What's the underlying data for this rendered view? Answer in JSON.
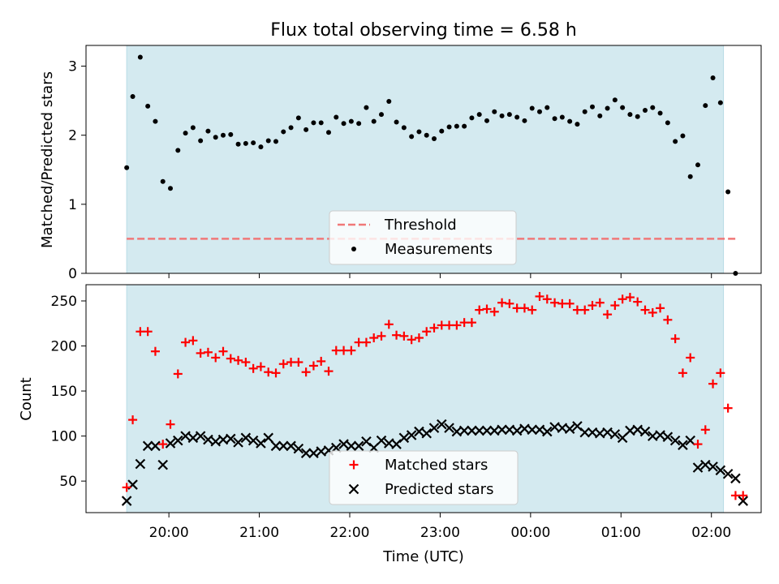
{
  "chart_data": {
    "title": "Flux total observing time = 6.58 h",
    "xlabel": "Time (UTC)",
    "x_ticks": [
      {
        "t": 20,
        "label": "20:00"
      },
      {
        "t": 21,
        "label": "21:00"
      },
      {
        "t": 22,
        "label": "22:00"
      },
      {
        "t": 23,
        "label": "23:00"
      },
      {
        "t": 24,
        "label": "00:00"
      },
      {
        "t": 25,
        "label": "01:00"
      },
      {
        "t": 26,
        "label": "02:00"
      }
    ],
    "xlim": [
      "19:05",
      "02:33"
    ],
    "observing_window": [
      "19:32",
      "02:08"
    ],
    "shading_color": "#d4eaf0",
    "top_panel": {
      "type": "scatter",
      "ylabel": "Matched/Predicted stars",
      "ylim": [
        0,
        3.3
      ],
      "yticks": [
        0,
        1,
        2,
        3
      ],
      "legend": {
        "placement": "lower-center",
        "threshold_label": "Threshold",
        "measurements_label": "Measurements"
      },
      "threshold": {
        "value": 0.5,
        "color": "#f07878"
      },
      "measurements_color": "#000000",
      "points": [
        [
          "19:32",
          1.53
        ],
        [
          "19:36",
          2.56
        ],
        [
          "19:41",
          3.13
        ],
        [
          "19:46",
          2.42
        ],
        [
          "19:51",
          2.2
        ],
        [
          "19:56",
          1.33
        ],
        [
          "20:01",
          1.23
        ],
        [
          "20:06",
          1.78
        ],
        [
          "20:11",
          2.03
        ],
        [
          "20:16",
          2.11
        ],
        [
          "20:21",
          1.92
        ],
        [
          "20:26",
          2.06
        ],
        [
          "20:31",
          1.97
        ],
        [
          "20:36",
          2.0
        ],
        [
          "20:41",
          2.01
        ],
        [
          "20:46",
          1.87
        ],
        [
          "20:51",
          1.88
        ],
        [
          "20:56",
          1.89
        ],
        [
          "21:01",
          1.83
        ],
        [
          "21:06",
          1.92
        ],
        [
          "21:11",
          1.91
        ],
        [
          "21:16",
          2.05
        ],
        [
          "21:21",
          2.11
        ],
        [
          "21:26",
          2.25
        ],
        [
          "21:31",
          2.08
        ],
        [
          "21:36",
          2.18
        ],
        [
          "21:41",
          2.18
        ],
        [
          "21:46",
          2.04
        ],
        [
          "21:51",
          2.26
        ],
        [
          "21:56",
          2.17
        ],
        [
          "22:01",
          2.2
        ],
        [
          "22:06",
          2.17
        ],
        [
          "22:11",
          2.4
        ],
        [
          "22:16",
          2.2
        ],
        [
          "22:21",
          2.3
        ],
        [
          "22:26",
          2.49
        ],
        [
          "22:31",
          2.19
        ],
        [
          "22:36",
          2.11
        ],
        [
          "22:41",
          1.98
        ],
        [
          "22:46",
          2.05
        ],
        [
          "22:51",
          2.0
        ],
        [
          "22:56",
          1.95
        ],
        [
          "23:01",
          2.06
        ],
        [
          "23:06",
          2.12
        ],
        [
          "23:11",
          2.13
        ],
        [
          "23:16",
          2.13
        ],
        [
          "23:21",
          2.25
        ],
        [
          "23:26",
          2.3
        ],
        [
          "23:31",
          2.21
        ],
        [
          "23:36",
          2.34
        ],
        [
          "23:41",
          2.28
        ],
        [
          "23:46",
          2.3
        ],
        [
          "23:51",
          2.26
        ],
        [
          "23:56",
          2.21
        ],
        [
          "00:01",
          2.39
        ],
        [
          "00:06",
          2.34
        ],
        [
          "00:11",
          2.4
        ],
        [
          "00:16",
          2.24
        ],
        [
          "00:21",
          2.26
        ],
        [
          "00:26",
          2.2
        ],
        [
          "00:31",
          2.16
        ],
        [
          "00:36",
          2.34
        ],
        [
          "00:41",
          2.41
        ],
        [
          "00:46",
          2.28
        ],
        [
          "00:51",
          2.39
        ],
        [
          "00:56",
          2.51
        ],
        [
          "01:01",
          2.4
        ],
        [
          "01:06",
          2.3
        ],
        [
          "01:11",
          2.27
        ],
        [
          "01:16",
          2.36
        ],
        [
          "01:21",
          2.4
        ],
        [
          "01:26",
          2.32
        ],
        [
          "01:31",
          2.18
        ],
        [
          "01:36",
          1.91
        ],
        [
          "01:41",
          1.99
        ],
        [
          "01:46",
          1.4
        ],
        [
          "01:51",
          1.57
        ],
        [
          "01:56",
          2.43
        ],
        [
          "02:01",
          2.83
        ],
        [
          "02:06",
          2.47
        ],
        [
          "02:11",
          1.18
        ],
        [
          "02:16",
          0.0
        ]
      ]
    },
    "bottom_panel": {
      "type": "scatter",
      "ylabel": "Count",
      "ylim": [
        15,
        268
      ],
      "yticks": [
        50,
        100,
        150,
        200,
        250
      ],
      "legend": {
        "placement": "lower-center",
        "matched_label": "Matched stars",
        "predicted_label": "Predicted stars"
      },
      "matched_color": "#ff0000",
      "predicted_color": "#000000",
      "matched": [
        [
          "19:32",
          43
        ],
        [
          "19:36",
          118
        ],
        [
          "19:41",
          216
        ],
        [
          "19:46",
          216
        ],
        [
          "19:51",
          194
        ],
        [
          "19:56",
          91
        ],
        [
          "20:01",
          113
        ],
        [
          "20:06",
          169
        ],
        [
          "20:11",
          204
        ],
        [
          "20:16",
          206
        ],
        [
          "20:21",
          192
        ],
        [
          "20:26",
          193
        ],
        [
          "20:31",
          187
        ],
        [
          "20:36",
          194
        ],
        [
          "20:41",
          186
        ],
        [
          "20:46",
          184
        ],
        [
          "20:51",
          182
        ],
        [
          "20:56",
          175
        ],
        [
          "21:01",
          177
        ],
        [
          "21:06",
          171
        ],
        [
          "21:11",
          170
        ],
        [
          "21:16",
          180
        ],
        [
          "21:21",
          182
        ],
        [
          "21:26",
          182
        ],
        [
          "21:31",
          171
        ],
        [
          "21:36",
          178
        ],
        [
          "21:41",
          183
        ],
        [
          "21:46",
          172
        ],
        [
          "21:51",
          195
        ],
        [
          "21:56",
          195
        ],
        [
          "22:01",
          195
        ],
        [
          "22:06",
          204
        ],
        [
          "22:11",
          204
        ],
        [
          "22:16",
          209
        ],
        [
          "22:21",
          211
        ],
        [
          "22:26",
          224
        ],
        [
          "22:31",
          212
        ],
        [
          "22:36",
          211
        ],
        [
          "22:41",
          207
        ],
        [
          "22:46",
          209
        ],
        [
          "22:51",
          216
        ],
        [
          "22:56",
          220
        ],
        [
          "23:01",
          223
        ],
        [
          "23:06",
          223
        ],
        [
          "23:11",
          223
        ],
        [
          "23:16",
          226
        ],
        [
          "23:21",
          226
        ],
        [
          "23:26",
          240
        ],
        [
          "23:31",
          241
        ],
        [
          "23:36",
          238
        ],
        [
          "23:41",
          248
        ],
        [
          "23:46",
          247
        ],
        [
          "23:51",
          242
        ],
        [
          "23:56",
          242
        ],
        [
          "00:01",
          240
        ],
        [
          "00:06",
          255
        ],
        [
          "00:11",
          252
        ],
        [
          "00:16",
          248
        ],
        [
          "00:21",
          247
        ],
        [
          "00:26",
          247
        ],
        [
          "00:31",
          240
        ],
        [
          "00:36",
          240
        ],
        [
          "00:41",
          245
        ],
        [
          "00:46",
          248
        ],
        [
          "00:51",
          235
        ],
        [
          "00:56",
          245
        ],
        [
          "01:01",
          252
        ],
        [
          "01:06",
          254
        ],
        [
          "01:11",
          249
        ],
        [
          "01:16",
          240
        ],
        [
          "01:21",
          237
        ],
        [
          "01:26",
          242
        ],
        [
          "01:31",
          229
        ],
        [
          "01:36",
          208
        ],
        [
          "01:41",
          170
        ],
        [
          "01:46",
          187
        ],
        [
          "01:51",
          91
        ],
        [
          "01:56",
          107
        ],
        [
          "02:01",
          158
        ],
        [
          "02:06",
          170
        ],
        [
          "02:11",
          131
        ],
        [
          "02:16",
          34
        ],
        [
          "02:21",
          34
        ]
      ],
      "predicted": [
        [
          "19:32",
          28
        ],
        [
          "19:36",
          46
        ],
        [
          "19:41",
          69
        ],
        [
          "19:46",
          89
        ],
        [
          "19:51",
          89
        ],
        [
          "19:56",
          68
        ],
        [
          "20:01",
          92
        ],
        [
          "20:06",
          95
        ],
        [
          "20:11",
          100
        ],
        [
          "20:16",
          98
        ],
        [
          "20:21",
          100
        ],
        [
          "20:26",
          96
        ],
        [
          "20:31",
          94
        ],
        [
          "20:36",
          96
        ],
        [
          "20:41",
          97
        ],
        [
          "20:46",
          93
        ],
        [
          "20:51",
          98
        ],
        [
          "20:56",
          95
        ],
        [
          "21:01",
          92
        ],
        [
          "21:06",
          98
        ],
        [
          "21:11",
          89
        ],
        [
          "21:16",
          89
        ],
        [
          "21:21",
          89
        ],
        [
          "21:26",
          86
        ],
        [
          "21:31",
          81
        ],
        [
          "21:36",
          81
        ],
        [
          "21:41",
          83
        ],
        [
          "21:46",
          84
        ],
        [
          "21:51",
          87
        ],
        [
          "21:56",
          91
        ],
        [
          "22:01",
          89
        ],
        [
          "22:06",
          89
        ],
        [
          "22:11",
          94
        ],
        [
          "22:16",
          87
        ],
        [
          "22:21",
          95
        ],
        [
          "22:26",
          92
        ],
        [
          "22:31",
          91
        ],
        [
          "22:36",
          98
        ],
        [
          "22:41",
          101
        ],
        [
          "22:46",
          105
        ],
        [
          "22:51",
          103
        ],
        [
          "22:56",
          109
        ],
        [
          "23:01",
          113
        ],
        [
          "23:06",
          109
        ],
        [
          "23:11",
          105
        ],
        [
          "23:16",
          106
        ],
        [
          "23:21",
          106
        ],
        [
          "23:26",
          106
        ],
        [
          "23:31",
          106
        ],
        [
          "23:36",
          106
        ],
        [
          "23:41",
          107
        ],
        [
          "23:46",
          107
        ],
        [
          "23:51",
          106
        ],
        [
          "23:56",
          108
        ],
        [
          "00:01",
          107
        ],
        [
          "00:06",
          107
        ],
        [
          "00:11",
          105
        ],
        [
          "00:16",
          110
        ],
        [
          "00:21",
          109
        ],
        [
          "00:26",
          108
        ],
        [
          "00:31",
          111
        ],
        [
          "00:36",
          104
        ],
        [
          "00:41",
          104
        ],
        [
          "00:46",
          103
        ],
        [
          "00:51",
          104
        ],
        [
          "00:56",
          102
        ],
        [
          "01:01",
          98
        ],
        [
          "01:06",
          106
        ],
        [
          "01:11",
          107
        ],
        [
          "01:16",
          105
        ],
        [
          "01:21",
          100
        ],
        [
          "01:26",
          101
        ],
        [
          "01:31",
          99
        ],
        [
          "01:36",
          95
        ],
        [
          "01:41",
          90
        ],
        [
          "01:46",
          95
        ],
        [
          "01:51",
          65
        ],
        [
          "01:56",
          68
        ],
        [
          "02:01",
          66
        ],
        [
          "02:06",
          62
        ],
        [
          "02:11",
          58
        ],
        [
          "02:16",
          53
        ],
        [
          "02:21",
          28
        ]
      ]
    }
  }
}
